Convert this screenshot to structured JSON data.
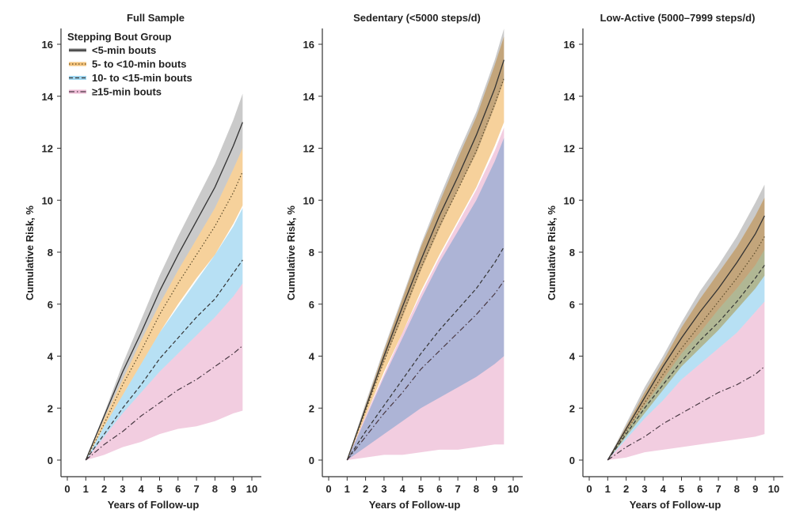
{
  "chart_data": [
    {
      "type": "area",
      "title": "Full Sample",
      "xlabel": "Years of Follow-up",
      "ylabel": "Cumulative Risk, %",
      "xlim": [
        0,
        10
      ],
      "ylim": [
        0,
        16
      ],
      "xticks": [
        "0",
        "1",
        "2",
        "3",
        "4",
        "5",
        "6",
        "7",
        "8",
        "9",
        "10"
      ],
      "yticks": [
        "0",
        "2",
        "4",
        "6",
        "8",
        "10",
        "12",
        "14",
        "16"
      ],
      "x": [
        1,
        2,
        3,
        4,
        5,
        6,
        7,
        8,
        9,
        9.5
      ],
      "series": [
        {
          "name": "<5-min bouts",
          "y": [
            0,
            1.7,
            3.4,
            4.9,
            6.5,
            7.9,
            9.2,
            10.5,
            12.1,
            13.0
          ],
          "upper": [
            0,
            1.8,
            3.7,
            5.4,
            7.1,
            8.6,
            10.0,
            11.4,
            13.1,
            14.1
          ],
          "lower": [
            0,
            1.6,
            3.1,
            4.6,
            6.0,
            7.3,
            8.5,
            9.7,
            11.2,
            12.0
          ]
        },
        {
          "name": "5- to <10-min bouts",
          "y": [
            0,
            1.4,
            2.9,
            4.2,
            5.6,
            6.8,
            7.9,
            9.0,
            10.3,
            11.1
          ],
          "upper": [
            0,
            1.6,
            3.1,
            4.6,
            6.0,
            7.3,
            8.5,
            9.7,
            11.2,
            12.0
          ],
          "lower": [
            0,
            1.3,
            2.5,
            3.7,
            4.9,
            6.0,
            7.0,
            7.9,
            9.1,
            9.8
          ]
        },
        {
          "name": "10- to <15-min bouts",
          "y": [
            0,
            1.0,
            2.0,
            2.9,
            3.9,
            4.7,
            5.5,
            6.2,
            7.2,
            7.7
          ],
          "upper": [
            0,
            1.3,
            2.5,
            3.7,
            4.9,
            5.9,
            6.9,
            7.9,
            9.0,
            9.7
          ],
          "lower": [
            0,
            0.9,
            1.8,
            2.6,
            3.4,
            4.1,
            4.8,
            5.5,
            6.3,
            6.8
          ]
        },
        {
          "name": "≥15-min bouts",
          "y": [
            0,
            0.6,
            1.1,
            1.7,
            2.2,
            2.7,
            3.1,
            3.6,
            4.1,
            4.4
          ],
          "upper": [
            0,
            0.9,
            1.8,
            2.6,
            3.4,
            4.1,
            4.8,
            5.5,
            6.3,
            6.8
          ],
          "lower": [
            0,
            0.2,
            0.5,
            0.7,
            1.0,
            1.2,
            1.3,
            1.5,
            1.8,
            1.9
          ]
        }
      ],
      "legend": {
        "title": "Stepping Bout Group",
        "placement": "top-left"
      }
    },
    {
      "type": "area",
      "title": "Sedentary (<5000 steps/d)",
      "xlabel": "Years of Follow-up",
      "ylabel": "Cumulative Risk, %",
      "xlim": [
        0,
        10
      ],
      "ylim": [
        0,
        16
      ],
      "xticks": [
        "0",
        "1",
        "2",
        "3",
        "4",
        "5",
        "6",
        "7",
        "8",
        "9",
        "10"
      ],
      "yticks": [
        "0",
        "2",
        "4",
        "6",
        "8",
        "10",
        "12",
        "14",
        "16"
      ],
      "x": [
        1,
        2,
        3,
        4,
        5,
        6,
        7,
        8,
        9,
        9.5
      ],
      "series": [
        {
          "name": "<5-min bouts",
          "y": [
            0,
            2.0,
            4.0,
            5.9,
            7.7,
            9.4,
            10.9,
            12.5,
            14.3,
            15.4
          ],
          "upper": [
            0,
            2.2,
            4.3,
            6.3,
            8.3,
            10.1,
            11.8,
            13.4,
            15.4,
            16.6
          ],
          "lower": [
            0,
            1.9,
            3.8,
            5.5,
            7.3,
            8.9,
            10.4,
            11.8,
            13.6,
            14.6
          ]
        },
        {
          "name": "5- to <10-min bouts",
          "y": [
            0,
            1.9,
            3.8,
            5.6,
            7.4,
            9.0,
            10.4,
            11.9,
            13.7,
            14.7
          ],
          "upper": [
            0,
            2.1,
            4.2,
            6.2,
            8.2,
            9.9,
            11.6,
            13.2,
            15.2,
            16.3
          ],
          "lower": [
            0,
            1.7,
            3.4,
            4.9,
            6.5,
            7.9,
            9.2,
            10.5,
            12.1,
            13.0
          ]
        },
        {
          "name": "10- to <15-min bouts",
          "y": [
            0,
            1.1,
            2.1,
            3.1,
            4.1,
            5.0,
            5.8,
            6.6,
            7.6,
            8.2
          ],
          "upper": [
            0,
            1.6,
            3.2,
            4.7,
            6.2,
            7.6,
            8.8,
            10.0,
            11.5,
            12.4
          ],
          "lower": [
            0,
            0.5,
            1.0,
            1.5,
            2.0,
            2.4,
            2.8,
            3.2,
            3.7,
            4.0
          ]
        },
        {
          "name": "≥15-min bouts",
          "y": [
            0,
            0.9,
            1.8,
            2.6,
            3.5,
            4.2,
            4.9,
            5.6,
            6.4,
            6.9
          ],
          "upper": [
            0,
            1.7,
            3.3,
            4.9,
            6.4,
            7.8,
            9.1,
            10.4,
            11.9,
            12.8
          ],
          "lower": [
            0,
            0.1,
            0.2,
            0.2,
            0.3,
            0.4,
            0.4,
            0.5,
            0.6,
            0.6
          ]
        }
      ]
    },
    {
      "type": "area",
      "title": "Low-Active (5000–7999 steps/d)",
      "xlabel": "Years of Follow-up",
      "ylabel": "Cumulative Risk, %",
      "xlim": [
        0,
        10
      ],
      "ylim": [
        0,
        16
      ],
      "xticks": [
        "0",
        "1",
        "2",
        "3",
        "4",
        "5",
        "6",
        "7",
        "8",
        "9",
        "10"
      ],
      "yticks": [
        "0",
        "2",
        "4",
        "6",
        "8",
        "10",
        "12",
        "14",
        "16"
      ],
      "x": [
        1,
        2,
        3,
        4,
        5,
        6,
        7,
        8,
        9,
        9.5
      ],
      "series": [
        {
          "name": "<5-min bouts",
          "y": [
            0,
            1.2,
            2.4,
            3.6,
            4.7,
            5.7,
            6.6,
            7.6,
            8.7,
            9.4
          ],
          "upper": [
            0,
            1.4,
            2.8,
            4.0,
            5.3,
            6.5,
            7.5,
            8.6,
            9.9,
            10.6
          ],
          "lower": [
            0,
            1.1,
            2.1,
            3.1,
            4.1,
            4.9,
            5.8,
            6.6,
            7.5,
            8.1
          ]
        },
        {
          "name": "5- to <10-min bouts",
          "y": [
            0,
            1.1,
            2.2,
            3.3,
            4.3,
            5.2,
            6.1,
            7.0,
            8.0,
            8.6
          ],
          "upper": [
            0,
            1.3,
            2.6,
            3.8,
            5.1,
            6.2,
            7.2,
            8.2,
            9.4,
            10.1
          ],
          "lower": [
            0,
            0.9,
            1.8,
            2.7,
            3.6,
            4.3,
            5.0,
            5.8,
            6.6,
            7.1
          ]
        },
        {
          "name": "10- to <15-min bouts",
          "y": [
            0,
            1.0,
            2.0,
            2.9,
            3.8,
            4.6,
            5.3,
            6.1,
            7.0,
            7.5
          ],
          "upper": [
            0,
            1.1,
            2.1,
            3.1,
            4.1,
            4.9,
            5.8,
            6.6,
            7.5,
            8.1
          ],
          "lower": [
            0,
            0.8,
            1.6,
            2.3,
            3.1,
            3.7,
            4.3,
            4.9,
            5.7,
            6.1
          ]
        },
        {
          "name": "≥15-min bouts",
          "y": [
            0,
            0.5,
            0.9,
            1.4,
            1.8,
            2.2,
            2.6,
            2.9,
            3.3,
            3.6
          ],
          "upper": [
            0,
            0.8,
            1.6,
            2.3,
            3.1,
            3.7,
            4.3,
            4.9,
            5.7,
            6.1
          ],
          "lower": [
            0,
            0.1,
            0.3,
            0.4,
            0.5,
            0.6,
            0.7,
            0.8,
            0.9,
            1.0
          ]
        }
      ]
    }
  ],
  "styles": [
    {
      "band": "#b8b8b8",
      "line": "#333333",
      "dash": ""
    },
    {
      "band": "#f3c27a",
      "line": "#5a4a2a",
      "dash": "1.5,2.5"
    },
    {
      "band": "#9fd6f0",
      "line": "#333333",
      "dash": "5,3"
    },
    {
      "band": "#edbcd6",
      "line": "#4a3a44",
      "dash": "7,3,1.5,3"
    }
  ]
}
